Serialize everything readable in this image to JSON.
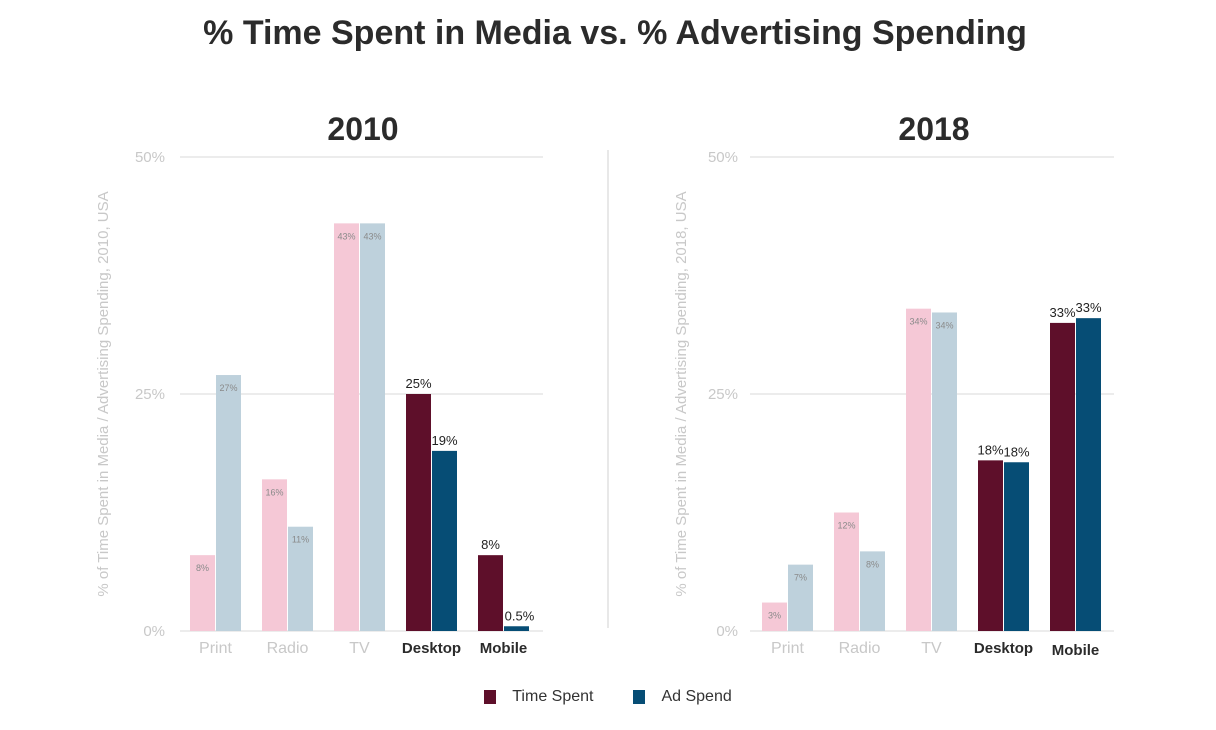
{
  "title": "% Time Spent in Media vs. % Advertising Spending",
  "legend": [
    {
      "label": "Time Spent",
      "color": "#5e0f2a"
    },
    {
      "label": "Ad Spend",
      "color": "#064d75"
    }
  ],
  "colors": {
    "time_spent_legacy": "#f5c8d6",
    "ad_spend_legacy": "#bed1dc",
    "time_spent_digital": "#5e0f2a",
    "ad_spend_digital": "#064d75",
    "axis_text": "#c8c8c8",
    "grid": "#d9d9d9"
  },
  "chart_data": [
    {
      "type": "bar",
      "title": "2010",
      "ylabel": "% of Time Spent in Media / Advertising Spending, 2010, USA",
      "ylim": [
        0,
        50
      ],
      "yticks": [
        "0%",
        "25%",
        "50%"
      ],
      "categories": [
        "Print",
        "Radio",
        "TV",
        "Desktop",
        "Mobile"
      ],
      "highlighted_categories": [
        "Desktop",
        "Mobile"
      ],
      "series": [
        {
          "name": "Time Spent",
          "values": [
            8,
            16,
            43,
            25,
            8
          ],
          "labels": [
            "8%",
            "16%",
            "43%",
            "25%",
            "8%"
          ]
        },
        {
          "name": "Ad Spend",
          "values": [
            27,
            11,
            43,
            19,
            0.5
          ],
          "labels": [
            "27%",
            "11%",
            "43%",
            "19%",
            "0.5%"
          ]
        }
      ],
      "grid": true
    },
    {
      "type": "bar",
      "title": "2018",
      "ylabel": "% of Time Spent in Media / Advertising Spending, 2018, USA",
      "ylim": [
        0,
        50
      ],
      "yticks": [
        "0%",
        "25%",
        "50%"
      ],
      "categories": [
        "Print",
        "Radio",
        "TV",
        "Desktop",
        "Mobile"
      ],
      "highlighted_categories": [
        "Desktop",
        "Mobile"
      ],
      "series": [
        {
          "name": "Time Spent",
          "values": [
            3,
            12.5,
            34,
            18,
            32.5
          ],
          "labels": [
            "3%",
            "12%",
            "34%",
            "18%",
            "33%"
          ]
        },
        {
          "name": "Ad Spend",
          "values": [
            7,
            8.4,
            33.6,
            17.8,
            33
          ],
          "labels": [
            "7%",
            "8%",
            "34%",
            "18%",
            "33%"
          ]
        }
      ],
      "grid": true
    }
  ]
}
